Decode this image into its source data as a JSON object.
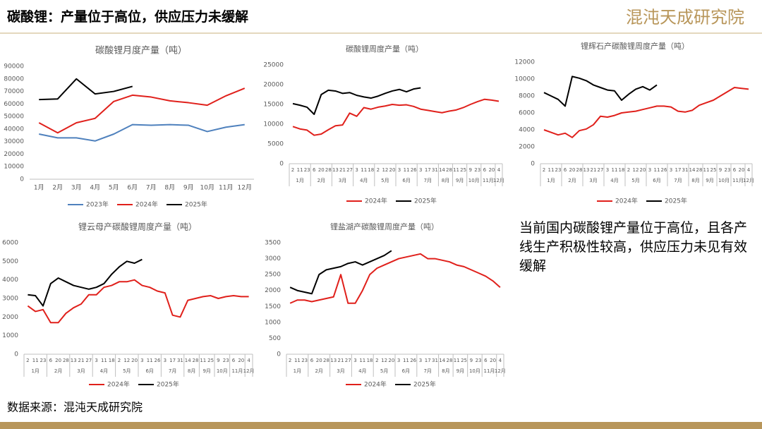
{
  "title": "碳酸锂：产量位于高位，供应压力未缓解",
  "logo": "混沌天成研究院",
  "note": "当前国内碳酸锂产量位于高位，且各产线生产积极性较高，供应压力未见有效缓解",
  "source": "数据来源：混沌天成研究院",
  "chart_data": [
    {
      "type": "line",
      "title": "碳酸锂月度产量（吨）",
      "categories": [
        "1月",
        "2月",
        "3月",
        "4月",
        "5月",
        "6月",
        "7月",
        "8月",
        "9月",
        "10月",
        "11月",
        "12月"
      ],
      "ylim": [
        0,
        90000
      ],
      "yticks": [
        0,
        10000,
        20000,
        30000,
        40000,
        50000,
        60000,
        70000,
        80000,
        90000
      ],
      "grid": false,
      "series": [
        {
          "name": "2023年",
          "color": "#4f81bd",
          "values": [
            36000,
            33000,
            33000,
            30500,
            36000,
            43500,
            43000,
            43500,
            43000,
            38000,
            41500,
            43500
          ]
        },
        {
          "name": "2024年",
          "color": "#e0201b",
          "values": [
            45000,
            37000,
            45000,
            48500,
            62000,
            67000,
            65500,
            62500,
            61000,
            59000,
            66500,
            72500
          ]
        },
        {
          "name": "2025年",
          "color": "#000000",
          "values": [
            63500,
            64000,
            80000,
            68000,
            70000,
            74000,
            null,
            null,
            null,
            null,
            null,
            null
          ]
        }
      ]
    },
    {
      "type": "line",
      "title": "碳酸锂周度产量（吨）",
      "categories": [
        "2",
        "11",
        "23",
        "6",
        "20",
        "28",
        "13",
        "21",
        "27",
        "3",
        "11",
        "18",
        "2",
        "12",
        "20",
        "3",
        "11",
        "26",
        "3",
        "17",
        "31",
        "14",
        "28",
        "11",
        "25",
        "9",
        "23",
        "6",
        "20",
        "4"
      ],
      "groups": [
        {
          "label": "1月",
          "count": 3
        },
        {
          "label": "2月",
          "count": 3
        },
        {
          "label": "3月",
          "count": 3
        },
        {
          "label": "4月",
          "count": 3
        },
        {
          "label": "5月",
          "count": 3
        },
        {
          "label": "6月",
          "count": 3
        },
        {
          "label": "7月",
          "count": 3
        },
        {
          "label": "8月",
          "count": 2
        },
        {
          "label": "9月",
          "count": 2
        },
        {
          "label": "10月",
          "count": 2
        },
        {
          "label": "11月",
          "count": 2
        },
        {
          "label": "12月",
          "count": 1
        }
      ],
      "ylim": [
        0,
        25000
      ],
      "yticks": [
        0,
        5000,
        10000,
        15000,
        20000,
        25000
      ],
      "grid": false,
      "series": [
        {
          "name": "2024年",
          "color": "#e0201b",
          "values": [
            9400,
            8800,
            8500,
            7200,
            7500,
            8600,
            9600,
            9800,
            12800,
            12000,
            14200,
            13800,
            14300,
            14600,
            15000,
            14800,
            14900,
            14500,
            13800,
            13500,
            13200,
            12900,
            13300,
            13600,
            14200,
            15000,
            15700,
            16300,
            16100,
            15800
          ]
        },
        {
          "name": "2025年",
          "color": "#000000",
          "values": [
            15200,
            14800,
            14300,
            12500,
            17500,
            18600,
            18400,
            17800,
            18000,
            17300,
            16900,
            16600,
            17100,
            17800,
            18400,
            18800,
            18200,
            18900,
            19200,
            null,
            null,
            null,
            null,
            null,
            null,
            null,
            null,
            null,
            null,
            null
          ]
        }
      ]
    },
    {
      "type": "line",
      "title": "锂辉石产碳酸锂周度产量（吨）",
      "categories": [
        "2",
        "11",
        "23",
        "6",
        "20",
        "28",
        "13",
        "21",
        "27",
        "3",
        "11",
        "18",
        "2",
        "12",
        "20",
        "3",
        "11",
        "26",
        "3",
        "17",
        "31",
        "14",
        "28",
        "11",
        "25",
        "9",
        "23",
        "6",
        "20",
        "4"
      ],
      "groups": [
        {
          "label": "1月",
          "count": 3
        },
        {
          "label": "2月",
          "count": 3
        },
        {
          "label": "3月",
          "count": 3
        },
        {
          "label": "4月",
          "count": 3
        },
        {
          "label": "5月",
          "count": 3
        },
        {
          "label": "6月",
          "count": 3
        },
        {
          "label": "7月",
          "count": 3
        },
        {
          "label": "8月",
          "count": 2
        },
        {
          "label": "9月",
          "count": 2
        },
        {
          "label": "10月",
          "count": 2
        },
        {
          "label": "11月",
          "count": 2
        },
        {
          "label": "12月",
          "count": 1
        }
      ],
      "ylim": [
        0,
        12000
      ],
      "yticks": [
        0,
        2000,
        4000,
        6000,
        8000,
        10000,
        12000
      ],
      "grid": false,
      "series": [
        {
          "name": "2024年",
          "color": "#e0201b",
          "values": [
            4000,
            3700,
            3400,
            3600,
            3100,
            3900,
            4100,
            4600,
            5600,
            5500,
            5700,
            6000,
            6100,
            6200,
            6400,
            6600,
            6800,
            6800,
            6700,
            6200,
            6100,
            6300,
            6900,
            7200,
            7500,
            8000,
            8500,
            9000,
            8900,
            8800
          ]
        },
        {
          "name": "2025年",
          "color": "#000000",
          "values": [
            8400,
            8000,
            7600,
            6800,
            10300,
            10100,
            9800,
            9300,
            9000,
            8700,
            8600,
            7500,
            8200,
            8800,
            9100,
            8700,
            9300,
            null,
            null,
            null,
            null,
            null,
            null,
            null,
            null,
            null,
            null,
            null,
            null,
            null
          ]
        }
      ]
    },
    {
      "type": "line",
      "title": "锂云母产碳酸锂周度产量（吨）",
      "categories": [
        "2",
        "11",
        "23",
        "6",
        "20",
        "28",
        "13",
        "21",
        "27",
        "3",
        "11",
        "18",
        "2",
        "12",
        "20",
        "3",
        "11",
        "26",
        "3",
        "17",
        "31",
        "14",
        "28",
        "11",
        "25",
        "9",
        "23",
        "6",
        "20",
        "4"
      ],
      "groups": [
        {
          "label": "1月",
          "count": 3
        },
        {
          "label": "2月",
          "count": 3
        },
        {
          "label": "3月",
          "count": 3
        },
        {
          "label": "4月",
          "count": 3
        },
        {
          "label": "5月",
          "count": 3
        },
        {
          "label": "6月",
          "count": 3
        },
        {
          "label": "7月",
          "count": 3
        },
        {
          "label": "8月",
          "count": 2
        },
        {
          "label": "9月",
          "count": 2
        },
        {
          "label": "10月",
          "count": 2
        },
        {
          "label": "11月",
          "count": 2
        },
        {
          "label": "12月",
          "count": 1
        }
      ],
      "ylim": [
        0,
        6000
      ],
      "yticks": [
        0,
        1000,
        2000,
        3000,
        4000,
        5000,
        6000
      ],
      "grid": false,
      "series": [
        {
          "name": "2024年",
          "color": "#e0201b",
          "values": [
            2600,
            2300,
            2400,
            1700,
            1700,
            2200,
            2500,
            2700,
            3200,
            3200,
            3600,
            3700,
            3900,
            3900,
            4000,
            3700,
            3600,
            3400,
            3300,
            2100,
            2000,
            2900,
            3000,
            3100,
            3150,
            3000,
            3100,
            3150,
            3100,
            3100
          ]
        },
        {
          "name": "2025年",
          "color": "#000000",
          "values": [
            3200,
            3150,
            2600,
            3800,
            4100,
            3900,
            3700,
            3600,
            3500,
            3600,
            3800,
            4300,
            4700,
            5000,
            4900,
            5100,
            null,
            null,
            null,
            null,
            null,
            null,
            null,
            null,
            null,
            null,
            null,
            null,
            null,
            null
          ]
        }
      ]
    },
    {
      "type": "line",
      "title": "锂盐湖产碳酸锂周度产量（吨）",
      "categories": [
        "2",
        "11",
        "23",
        "6",
        "20",
        "28",
        "13",
        "21",
        "27",
        "3",
        "11",
        "18",
        "2",
        "12",
        "20",
        "3",
        "11",
        "26",
        "3",
        "17",
        "31",
        "14",
        "28",
        "11",
        "25",
        "9",
        "23",
        "6",
        "20",
        "4"
      ],
      "groups": [
        {
          "label": "1月",
          "count": 3
        },
        {
          "label": "2月",
          "count": 3
        },
        {
          "label": "3月",
          "count": 3
        },
        {
          "label": "4月",
          "count": 3
        },
        {
          "label": "5月",
          "count": 3
        },
        {
          "label": "6月",
          "count": 3
        },
        {
          "label": "7月",
          "count": 3
        },
        {
          "label": "8月",
          "count": 2
        },
        {
          "label": "9月",
          "count": 2
        },
        {
          "label": "10月",
          "count": 2
        },
        {
          "label": "11月",
          "count": 2
        },
        {
          "label": "12月",
          "count": 1
        }
      ],
      "ylim": [
        0,
        3500
      ],
      "yticks": [
        0,
        500,
        1000,
        1500,
        2000,
        2500,
        3000,
        3500
      ],
      "grid": false,
      "series": [
        {
          "name": "2024年",
          "color": "#e0201b",
          "values": [
            1600,
            1700,
            1700,
            1650,
            1700,
            1750,
            1800,
            2500,
            1600,
            1600,
            2000,
            2500,
            2700,
            2800,
            2900,
            3000,
            3050,
            3100,
            3150,
            3000,
            3000,
            2950,
            2900,
            2800,
            2750,
            2650,
            2550,
            2450,
            2300,
            2100
          ]
        },
        {
          "name": "2025年",
          "color": "#000000",
          "values": [
            2100,
            2000,
            1950,
            1900,
            2500,
            2650,
            2700,
            2750,
            2850,
            2900,
            2800,
            2900,
            3000,
            3100,
            3250,
            null,
            null,
            null,
            null,
            null,
            null,
            null,
            null,
            null,
            null,
            null,
            null,
            null,
            null,
            null
          ]
        }
      ]
    }
  ]
}
